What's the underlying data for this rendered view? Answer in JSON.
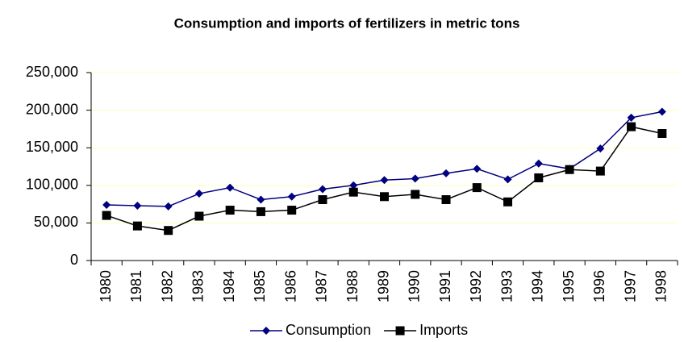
{
  "chart_data": {
    "type": "line",
    "title": "Consumption and imports of fertilizers in metric tons",
    "categories": [
      "1980",
      "1981",
      "1982",
      "1983",
      "1984",
      "1985",
      "1986",
      "1987",
      "1988",
      "1989",
      "1990",
      "1991",
      "1992",
      "1993",
      "1994",
      "1995",
      "1996",
      "1997",
      "1998"
    ],
    "series": [
      {
        "name": "Consumption",
        "color": "#000080",
        "marker": "diamond",
        "values": [
          74000,
          73000,
          72000,
          89000,
          97000,
          81000,
          85000,
          95000,
          100000,
          107000,
          109000,
          116000,
          122000,
          108000,
          129000,
          122000,
          149000,
          190000,
          198000
        ]
      },
      {
        "name": "Imports",
        "color": "#000000",
        "marker": "square",
        "values": [
          60000,
          46000,
          40000,
          59000,
          67000,
          65000,
          67000,
          81000,
          91000,
          85000,
          88000,
          81000,
          97000,
          78000,
          110000,
          121000,
          119000,
          178000,
          169000
        ]
      }
    ],
    "ylim": [
      0,
      250000
    ],
    "yticks": [
      0,
      {
        "value": 50000,
        "label": "50,000"
      },
      {
        "value": 100000,
        "label": "100,000"
      },
      {
        "value": 150000,
        "label": "150,000"
      },
      {
        "value": 200000,
        "label": "200,000"
      },
      {
        "value": 250000,
        "label": "250,000"
      }
    ],
    "grid": true,
    "grid_color": "#ffffc0",
    "legend": "bottom"
  }
}
